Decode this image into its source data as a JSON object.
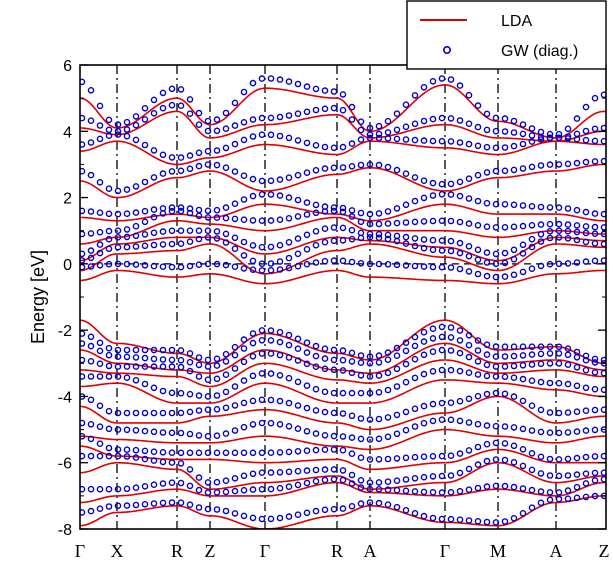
{
  "chart_data": {
    "type": "line",
    "ylabel": "Energy [eV]",
    "ylim": [
      -8,
      6
    ],
    "yticks": [
      -8,
      -6,
      -4,
      -2,
      0,
      2,
      4,
      6
    ],
    "ytick_labels": [
      "-8",
      "-6",
      "-4",
      "-2",
      "0",
      "2",
      "4",
      "6"
    ],
    "xlim": [
      0,
      12
    ],
    "kpoints": [
      {
        "label": "Γ",
        "x": 0
      },
      {
        "label": "X",
        "x": 1
      },
      {
        "label": "R",
        "x": 2.6
      },
      {
        "label": "Z",
        "x": 3.5
      },
      {
        "label": "Γ",
        "x": 5.0
      },
      {
        "label": "R",
        "x": 7.0
      },
      {
        "label": "A",
        "x": 7.9
      },
      {
        "label": "Γ",
        "x": 9.8
      },
      {
        "label": "M",
        "x": 11.0
      },
      {
        "label": "A",
        "x": 12.8
      },
      {
        "label": "Z",
        "x": 14.0
      }
    ],
    "fermi_level": 0,
    "legend": {
      "position": "top-right",
      "entries": [
        {
          "name": "LDA",
          "style": "line",
          "color": "#e00000"
        },
        {
          "name": "GW (diag.)",
          "style": "marker",
          "color": "#0000cc"
        }
      ]
    },
    "series": [
      {
        "name": "LDA",
        "band_energies": [
          [
            -7.9,
            -7.5,
            -7.3,
            -7.6,
            -8.0,
            -7.6,
            -7.3,
            -7.8,
            -7.9,
            -7.2,
            -7.0
          ],
          [
            -7.2,
            -7.0,
            -6.8,
            -7.0,
            -7.0,
            -6.6,
            -6.9,
            -7.0,
            -6.8,
            -7.0,
            -6.6
          ],
          [
            -6.3,
            -6.0,
            -6.2,
            -6.8,
            -6.6,
            -6.4,
            -6.8,
            -6.6,
            -6.0,
            -6.6,
            -6.4
          ],
          [
            -5.5,
            -5.8,
            -5.9,
            -5.9,
            -6.0,
            -5.9,
            -6.2,
            -6.0,
            -5.6,
            -6.0,
            -6.0
          ],
          [
            -5.2,
            -5.3,
            -5.4,
            -5.4,
            -5.2,
            -5.5,
            -5.6,
            -5.0,
            -5.2,
            -5.4,
            -5.2
          ],
          [
            -4.3,
            -4.8,
            -4.8,
            -4.6,
            -4.4,
            -4.8,
            -5.0,
            -4.5,
            -4.0,
            -4.8,
            -4.6
          ],
          [
            -3.7,
            -3.6,
            -4.2,
            -4.2,
            -3.6,
            -4.2,
            -4.2,
            -3.5,
            -3.6,
            -3.8,
            -4.0
          ],
          [
            -3.2,
            -3.3,
            -3.4,
            -3.7,
            -3.0,
            -3.5,
            -3.6,
            -2.9,
            -3.3,
            -3.2,
            -3.4
          ],
          [
            -2.6,
            -3.0,
            -3.2,
            -3.3,
            -2.6,
            -3.2,
            -3.3,
            -2.4,
            -3.0,
            -2.9,
            -3.2
          ],
          [
            -1.7,
            -2.4,
            -2.7,
            -3.0,
            -2.1,
            -2.7,
            -2.9,
            -1.7,
            -2.6,
            -2.5,
            -3.0
          ],
          [
            -0.5,
            -0.2,
            -0.4,
            -0.3,
            -0.6,
            -0.2,
            -0.4,
            -0.5,
            -0.6,
            -0.3,
            -0.2
          ],
          [
            -0.2,
            0.3,
            0.4,
            0.6,
            -0.3,
            0.4,
            0.6,
            0.2,
            -0.2,
            0.6,
            0.5
          ],
          [
            0.1,
            0.6,
            0.8,
            0.8,
            0.3,
            0.8,
            0.7,
            0.5,
            0.1,
            0.8,
            0.7
          ],
          [
            0.6,
            0.8,
            1.3,
            1.2,
            1.0,
            1.4,
            1.0,
            1.0,
            0.8,
            1.0,
            0.9
          ],
          [
            1.4,
            1.3,
            1.5,
            1.4,
            1.8,
            1.5,
            1.3,
            1.8,
            1.5,
            1.5,
            1.3
          ],
          [
            2.5,
            2.0,
            2.6,
            2.8,
            2.2,
            2.7,
            2.9,
            2.2,
            2.6,
            2.8,
            3.0
          ],
          [
            3.4,
            3.7,
            3.0,
            3.2,
            3.6,
            3.3,
            3.7,
            3.5,
            3.3,
            3.7,
            3.6
          ],
          [
            4.1,
            3.9,
            4.6,
            3.8,
            4.2,
            4.5,
            3.8,
            4.2,
            3.8,
            3.7,
            4.0
          ],
          [
            5.0,
            4.1,
            5.0,
            4.2,
            5.3,
            5.0,
            4.0,
            5.4,
            4.3,
            3.8,
            4.6
          ]
        ]
      },
      {
        "name": "GW (diag.)",
        "band_energies": [
          [
            -7.5,
            -7.3,
            -7.2,
            -7.4,
            -7.7,
            -7.4,
            -7.2,
            -7.7,
            -7.8,
            -7.1,
            -7.0
          ],
          [
            -6.8,
            -6.8,
            -6.6,
            -6.9,
            -6.8,
            -6.5,
            -6.8,
            -6.9,
            -6.7,
            -6.9,
            -6.5
          ],
          [
            -5.8,
            -5.8,
            -6.0,
            -6.6,
            -6.3,
            -6.2,
            -6.6,
            -6.4,
            -5.9,
            -6.4,
            -6.3
          ],
          [
            -5.2,
            -5.6,
            -5.7,
            -5.7,
            -5.7,
            -5.6,
            -5.9,
            -5.8,
            -5.4,
            -5.9,
            -5.8
          ],
          [
            -4.8,
            -5.0,
            -5.1,
            -5.2,
            -4.8,
            -5.2,
            -5.3,
            -4.7,
            -4.9,
            -5.1,
            -5.0
          ],
          [
            -4.0,
            -4.5,
            -4.5,
            -4.4,
            -4.1,
            -4.5,
            -4.7,
            -4.2,
            -3.9,
            -4.5,
            -4.4
          ],
          [
            -3.4,
            -3.4,
            -3.9,
            -4.0,
            -3.3,
            -3.9,
            -3.9,
            -3.2,
            -3.4,
            -3.6,
            -3.8
          ],
          [
            -2.9,
            -3.1,
            -3.1,
            -3.5,
            -2.7,
            -3.2,
            -3.4,
            -2.6,
            -3.1,
            -3.0,
            -3.3
          ],
          [
            -2.4,
            -2.8,
            -2.9,
            -3.1,
            -2.3,
            -2.9,
            -3.0,
            -2.2,
            -2.8,
            -2.7,
            -3.0
          ],
          [
            -2.1,
            -2.6,
            -2.6,
            -2.9,
            -2.0,
            -2.6,
            -2.8,
            -1.9,
            -2.5,
            -2.5,
            -2.9
          ],
          [
            -0.1,
            0.0,
            -0.1,
            0.0,
            -0.2,
            0.1,
            0.0,
            -0.1,
            -0.4,
            0.0,
            0.1
          ],
          [
            0.1,
            0.5,
            0.6,
            0.8,
            0.0,
            0.7,
            0.8,
            0.4,
            0.0,
            0.8,
            0.6
          ],
          [
            0.3,
            0.8,
            1.0,
            1.0,
            0.5,
            1.1,
            0.9,
            0.7,
            0.3,
            1.0,
            0.9
          ],
          [
            0.9,
            1.0,
            1.6,
            1.4,
            1.3,
            1.6,
            1.2,
            1.3,
            1.1,
            1.2,
            1.1
          ],
          [
            1.6,
            1.5,
            1.7,
            1.6,
            2.1,
            1.7,
            1.5,
            2.1,
            1.8,
            1.7,
            1.5
          ],
          [
            2.8,
            2.2,
            2.8,
            3.0,
            2.5,
            2.9,
            3.0,
            2.4,
            2.8,
            3.0,
            3.1
          ],
          [
            3.6,
            3.9,
            3.2,
            3.4,
            3.9,
            3.5,
            3.8,
            3.7,
            3.5,
            3.8,
            3.7
          ],
          [
            4.4,
            4.0,
            4.8,
            4.0,
            4.4,
            4.7,
            3.9,
            4.4,
            4.0,
            3.8,
            4.1
          ],
          [
            5.5,
            4.2,
            5.3,
            4.3,
            5.6,
            5.2,
            4.1,
            5.6,
            4.4,
            3.9,
            5.1
          ]
        ]
      }
    ]
  }
}
